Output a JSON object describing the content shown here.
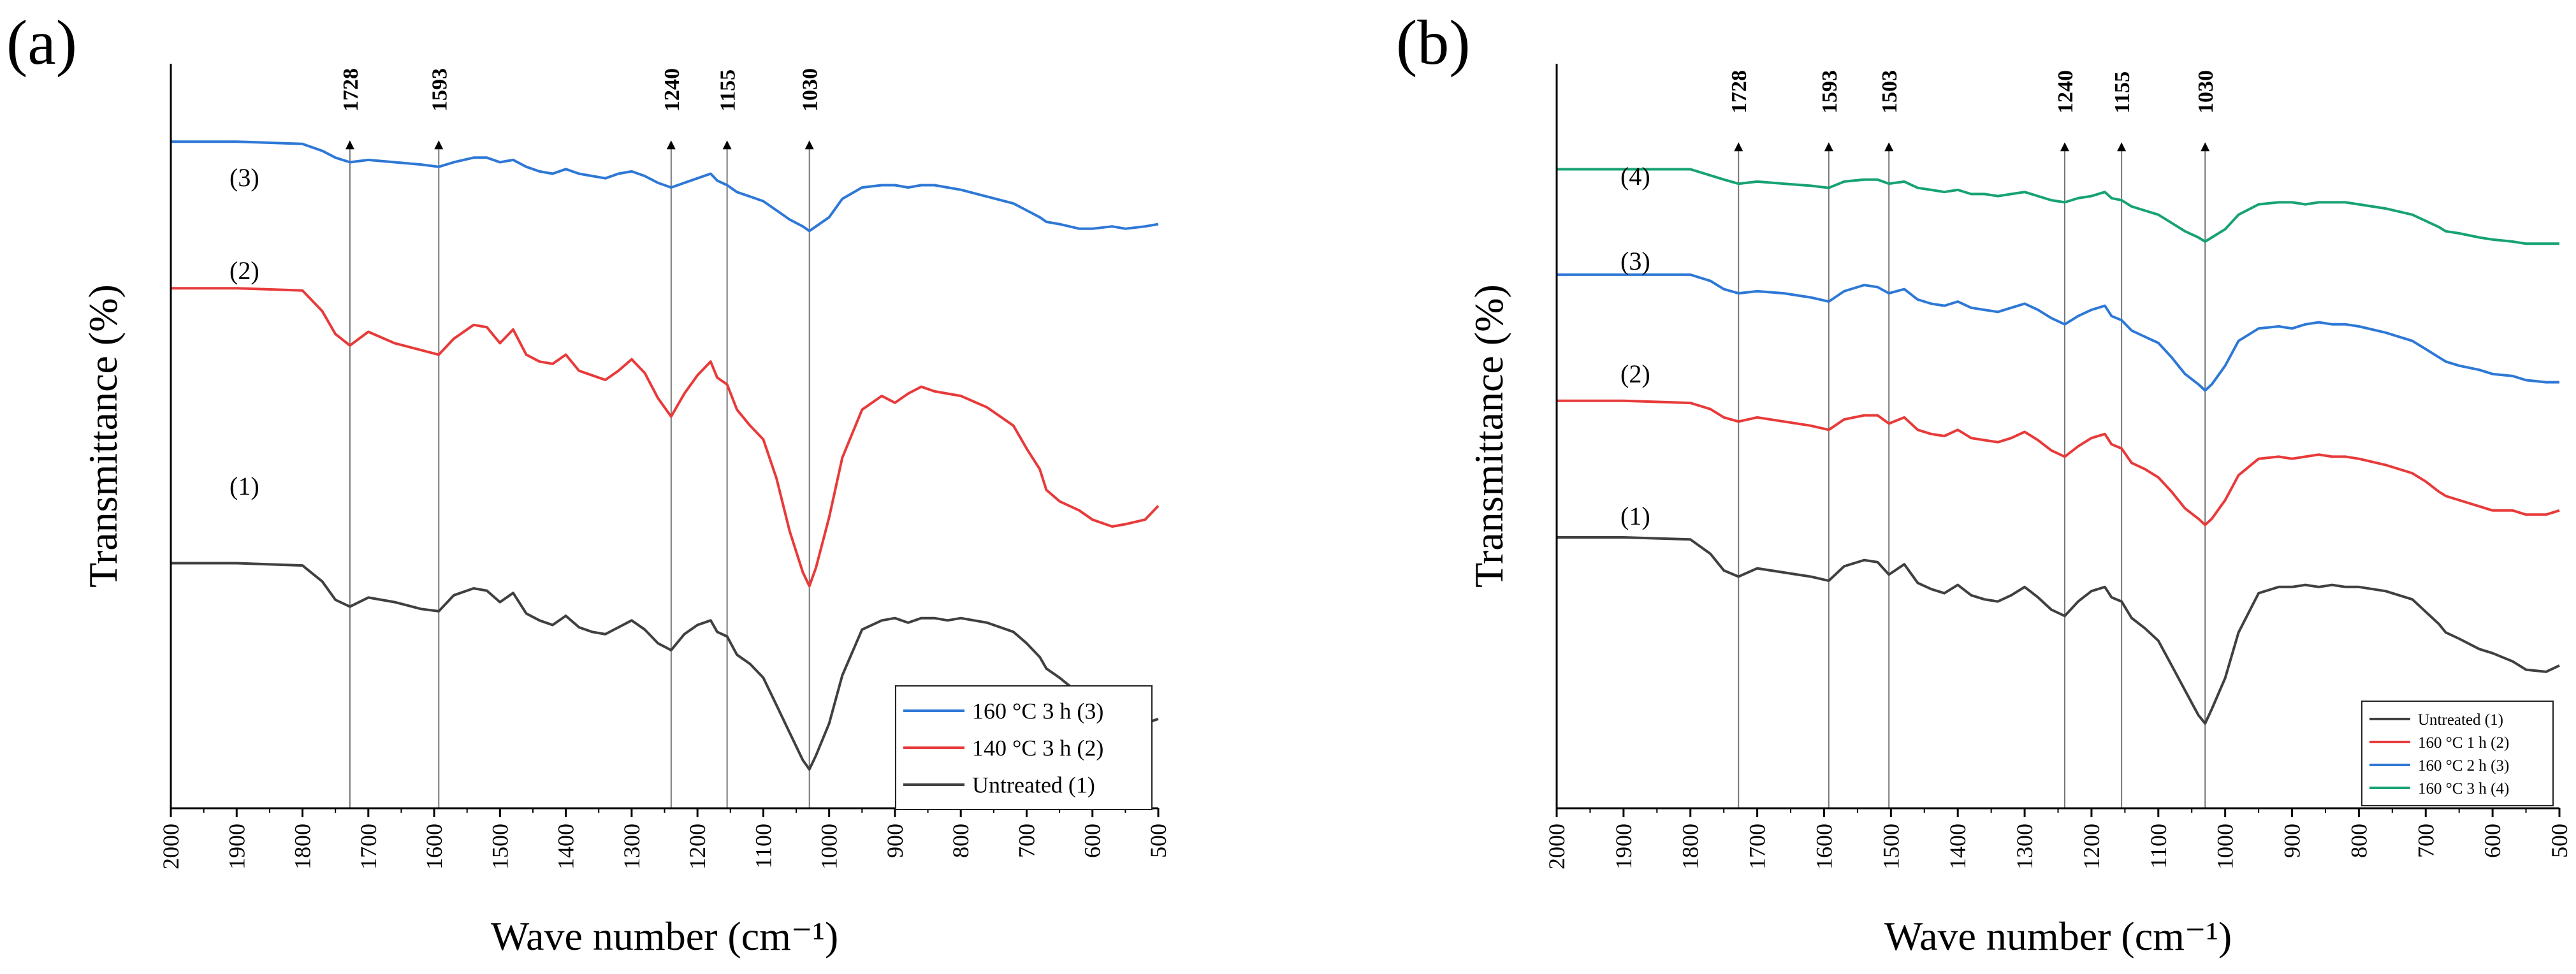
{
  "chart_data": [
    {
      "panel_label": "(a)",
      "type": "line",
      "xlabel": "Wave number (cm⁻¹)",
      "ylabel": "Transmittance (%)",
      "xlim": [
        2000,
        500
      ],
      "x_reversed": true,
      "xticks": [
        2000,
        1900,
        1800,
        1700,
        1600,
        1500,
        1400,
        1300,
        1200,
        1100,
        1000,
        900,
        800,
        700,
        600,
        500
      ],
      "xtick_labels": [
        "2000",
        "1900",
        "1800",
        "1700",
        "1600",
        "1500",
        "1400",
        "1300",
        "1200",
        "1100",
        "1000",
        "900",
        "800",
        "700",
        "600",
        "500"
      ],
      "y_ticks_shown": false,
      "grid": false,
      "legend_position": "bottom-right",
      "legend": [
        "160 °C 3 h (3)",
        "140 °C 3 h (2)",
        "Untreated (1)"
      ],
      "peak_markers": [
        {
          "x": 1728,
          "label": "1728"
        },
        {
          "x": 1593,
          "label": "1593"
        },
        {
          "x": 1240,
          "label": "1240"
        },
        {
          "x": 1155,
          "label": "1155"
        },
        {
          "x": 1030,
          "label": "1030"
        }
      ],
      "series": [
        {
          "legend_label": "Untreated (1)",
          "curve_label": "(1)",
          "color": "#404040",
          "x": [
            2000,
            1900,
            1800,
            1770,
            1750,
            1728,
            1700,
            1660,
            1620,
            1593,
            1570,
            1540,
            1520,
            1500,
            1480,
            1460,
            1440,
            1420,
            1400,
            1380,
            1360,
            1340,
            1320,
            1300,
            1280,
            1260,
            1240,
            1220,
            1200,
            1180,
            1170,
            1155,
            1140,
            1120,
            1100,
            1080,
            1060,
            1040,
            1030,
            1020,
            1000,
            980,
            950,
            920,
            900,
            880,
            860,
            840,
            820,
            800,
            760,
            720,
            700,
            680,
            670,
            650,
            620,
            600,
            570,
            550,
            520,
            500
          ],
          "y": [
            2.2,
            2.2,
            2.1,
            1.4,
            0.6,
            0.3,
            0.7,
            0.5,
            0.2,
            0.1,
            0.8,
            1.1,
            1.0,
            0.5,
            0.9,
            0.0,
            -0.3,
            -0.5,
            -0.1,
            -0.6,
            -0.8,
            -0.9,
            -0.6,
            -0.3,
            -0.7,
            -1.3,
            -1.6,
            -0.9,
            -0.5,
            -0.3,
            -0.8,
            -1.0,
            -1.8,
            -2.2,
            -2.8,
            -4.0,
            -5.2,
            -6.4,
            -6.8,
            -6.2,
            -4.8,
            -2.7,
            -0.7,
            -0.3,
            -0.2,
            -0.4,
            -0.2,
            -0.2,
            -0.3,
            -0.2,
            -0.4,
            -0.8,
            -1.3,
            -1.9,
            -2.4,
            -2.8,
            -3.5,
            -3.6,
            -4.1,
            -4.6,
            -4.8,
            -4.6
          ]
        },
        {
          "legend_label": "140 °C 3 h (2)",
          "curve_label": "(2)",
          "color": "#e83a3a",
          "x": [
            2000,
            1900,
            1800,
            1770,
            1750,
            1728,
            1700,
            1660,
            1620,
            1593,
            1570,
            1540,
            1520,
            1500,
            1480,
            1460,
            1440,
            1420,
            1400,
            1380,
            1360,
            1340,
            1320,
            1300,
            1280,
            1260,
            1240,
            1220,
            1200,
            1180,
            1170,
            1155,
            1140,
            1120,
            1100,
            1080,
            1060,
            1040,
            1030,
            1020,
            1000,
            980,
            950,
            920,
            900,
            880,
            860,
            840,
            820,
            800,
            760,
            720,
            700,
            680,
            670,
            650,
            620,
            600,
            570,
            550,
            520,
            500
          ],
          "y": [
            14.2,
            14.2,
            14.1,
            13.2,
            12.2,
            11.7,
            12.3,
            11.8,
            11.5,
            11.3,
            12.0,
            12.6,
            12.5,
            11.8,
            12.4,
            11.3,
            11.0,
            10.9,
            11.3,
            10.6,
            10.4,
            10.2,
            10.6,
            11.1,
            10.5,
            9.4,
            8.6,
            9.6,
            10.4,
            11.0,
            10.3,
            10.0,
            8.9,
            8.2,
            7.6,
            5.9,
            3.6,
            1.8,
            1.2,
            2.0,
            4.2,
            6.8,
            8.9,
            9.5,
            9.2,
            9.6,
            9.9,
            9.7,
            9.6,
            9.5,
            9.0,
            8.2,
            7.2,
            6.3,
            5.4,
            4.9,
            4.5,
            4.1,
            3.8,
            3.9,
            4.1,
            4.7
          ]
        },
        {
          "legend_label": "160 °C 3 h (3)",
          "curve_label": "(3)",
          "color": "#2e78d6",
          "x": [
            2000,
            1900,
            1800,
            1770,
            1750,
            1728,
            1700,
            1660,
            1620,
            1593,
            1570,
            1540,
            1520,
            1500,
            1480,
            1460,
            1440,
            1420,
            1400,
            1380,
            1360,
            1340,
            1320,
            1300,
            1280,
            1260,
            1240,
            1220,
            1200,
            1180,
            1170,
            1155,
            1140,
            1120,
            1100,
            1080,
            1060,
            1040,
            1030,
            1020,
            1000,
            980,
            950,
            920,
            900,
            880,
            860,
            840,
            820,
            800,
            760,
            720,
            700,
            680,
            670,
            650,
            620,
            600,
            570,
            550,
            520,
            500
          ],
          "y": [
            20.6,
            20.6,
            20.5,
            20.2,
            19.9,
            19.7,
            19.8,
            19.7,
            19.6,
            19.5,
            19.7,
            19.9,
            19.9,
            19.7,
            19.8,
            19.5,
            19.3,
            19.2,
            19.4,
            19.2,
            19.1,
            19.0,
            19.2,
            19.3,
            19.1,
            18.8,
            18.6,
            18.8,
            19.0,
            19.2,
            18.9,
            18.7,
            18.4,
            18.2,
            18.0,
            17.6,
            17.2,
            16.9,
            16.7,
            16.9,
            17.3,
            18.1,
            18.6,
            18.7,
            18.7,
            18.6,
            18.7,
            18.7,
            18.6,
            18.5,
            18.2,
            17.9,
            17.6,
            17.3,
            17.1,
            17.0,
            16.8,
            16.8,
            16.9,
            16.8,
            16.9,
            17.0
          ]
        }
      ]
    },
    {
      "panel_label": "(b)",
      "type": "line",
      "xlabel": "Wave number (cm⁻¹)",
      "ylabel": "Transmittance (%)",
      "xlim": [
        2000,
        500
      ],
      "x_reversed": true,
      "xticks": [
        2000,
        1900,
        1800,
        1700,
        1600,
        1500,
        1400,
        1300,
        1200,
        1100,
        1000,
        900,
        800,
        700,
        600,
        500
      ],
      "xtick_labels": [
        "2000",
        "1900",
        "1800",
        "1700",
        "1600",
        "1500",
        "1400",
        "1300",
        "1200",
        "1100",
        "1000",
        "900",
        "800",
        "700",
        "600",
        "500"
      ],
      "y_ticks_shown": false,
      "grid": false,
      "legend_position": "bottom-right",
      "legend": [
        "Untreated (1)",
        "160 °C 1 h (2)",
        "160 °C 2 h (3)",
        "160 °C 3 h (4)"
      ],
      "peak_markers": [
        {
          "x": 1728,
          "label": "1728"
        },
        {
          "x": 1593,
          "label": "1593"
        },
        {
          "x": 1503,
          "label": "1503"
        },
        {
          "x": 1240,
          "label": "1240"
        },
        {
          "x": 1155,
          "label": "1155"
        },
        {
          "x": 1030,
          "label": "1030"
        }
      ],
      "series": [
        {
          "legend_label": "Untreated (1)",
          "curve_label": "(1)",
          "color": "#404040",
          "x": [
            2000,
            1900,
            1800,
            1770,
            1750,
            1728,
            1700,
            1660,
            1620,
            1593,
            1570,
            1540,
            1520,
            1503,
            1480,
            1460,
            1440,
            1420,
            1400,
            1380,
            1360,
            1340,
            1320,
            1300,
            1280,
            1260,
            1240,
            1220,
            1200,
            1180,
            1170,
            1155,
            1140,
            1120,
            1100,
            1080,
            1060,
            1040,
            1030,
            1020,
            1000,
            980,
            950,
            920,
            900,
            880,
            860,
            840,
            820,
            800,
            760,
            720,
            700,
            680,
            670,
            650,
            620,
            600,
            570,
            550,
            520,
            500
          ],
          "y": [
            2.1,
            2.1,
            2.0,
            1.3,
            0.5,
            0.2,
            0.6,
            0.4,
            0.2,
            0.0,
            0.7,
            1.0,
            0.9,
            0.3,
            0.8,
            -0.1,
            -0.4,
            -0.6,
            -0.2,
            -0.7,
            -0.9,
            -1.0,
            -0.7,
            -0.3,
            -0.8,
            -1.4,
            -1.7,
            -1.0,
            -0.5,
            -0.3,
            -0.8,
            -1.0,
            -1.8,
            -2.3,
            -2.9,
            -4.1,
            -5.3,
            -6.5,
            -6.9,
            -6.2,
            -4.7,
            -2.5,
            -0.6,
            -0.3,
            -0.3,
            -0.2,
            -0.3,
            -0.2,
            -0.3,
            -0.3,
            -0.5,
            -0.9,
            -1.5,
            -2.1,
            -2.5,
            -2.8,
            -3.3,
            -3.5,
            -3.9,
            -4.3,
            -4.4,
            -4.1
          ]
        },
        {
          "legend_label": "160 °C 1 h (2)",
          "curve_label": "(2)",
          "color": "#e83a3a",
          "x": [
            2000,
            1900,
            1800,
            1770,
            1750,
            1728,
            1700,
            1660,
            1620,
            1593,
            1570,
            1540,
            1520,
            1503,
            1480,
            1460,
            1440,
            1420,
            1400,
            1380,
            1360,
            1340,
            1320,
            1300,
            1280,
            1260,
            1240,
            1220,
            1200,
            1180,
            1170,
            1155,
            1140,
            1120,
            1100,
            1080,
            1060,
            1040,
            1030,
            1020,
            1000,
            980,
            950,
            920,
            900,
            880,
            860,
            840,
            820,
            800,
            760,
            720,
            700,
            680,
            670,
            650,
            620,
            600,
            570,
            550,
            520,
            500
          ],
          "y": [
            8.7,
            8.7,
            8.6,
            8.3,
            7.9,
            7.7,
            7.9,
            7.7,
            7.5,
            7.3,
            7.8,
            8.0,
            8.0,
            7.6,
            7.9,
            7.3,
            7.1,
            7.0,
            7.3,
            6.9,
            6.8,
            6.7,
            6.9,
            7.2,
            6.8,
            6.3,
            6.0,
            6.5,
            6.9,
            7.1,
            6.6,
            6.4,
            5.7,
            5.4,
            5.0,
            4.3,
            3.5,
            3.0,
            2.7,
            3.0,
            3.9,
            5.1,
            5.9,
            6.0,
            5.9,
            6.0,
            6.1,
            6.0,
            6.0,
            5.9,
            5.6,
            5.2,
            4.8,
            4.3,
            4.1,
            3.9,
            3.6,
            3.4,
            3.4,
            3.2,
            3.2,
            3.4
          ]
        },
        {
          "legend_label": "160 °C 2 h (3)",
          "curve_label": "(3)",
          "color": "#2e78d6",
          "x": [
            2000,
            1900,
            1800,
            1770,
            1750,
            1728,
            1700,
            1660,
            1620,
            1593,
            1570,
            1540,
            1520,
            1503,
            1480,
            1460,
            1440,
            1420,
            1400,
            1380,
            1360,
            1340,
            1320,
            1300,
            1280,
            1260,
            1240,
            1220,
            1200,
            1180,
            1170,
            1155,
            1140,
            1120,
            1100,
            1080,
            1060,
            1040,
            1030,
            1020,
            1000,
            980,
            950,
            920,
            900,
            880,
            860,
            840,
            820,
            800,
            760,
            720,
            700,
            680,
            670,
            650,
            620,
            600,
            570,
            550,
            520,
            500
          ],
          "y": [
            14.8,
            14.8,
            14.8,
            14.5,
            14.1,
            13.9,
            14.0,
            13.9,
            13.7,
            13.5,
            14.0,
            14.3,
            14.2,
            13.9,
            14.1,
            13.6,
            13.4,
            13.3,
            13.5,
            13.2,
            13.1,
            13.0,
            13.2,
            13.4,
            13.1,
            12.7,
            12.4,
            12.8,
            13.1,
            13.3,
            12.8,
            12.6,
            12.1,
            11.8,
            11.5,
            10.8,
            10.0,
            9.5,
            9.2,
            9.5,
            10.4,
            11.6,
            12.2,
            12.3,
            12.2,
            12.4,
            12.5,
            12.4,
            12.4,
            12.3,
            12.0,
            11.6,
            11.2,
            10.8,
            10.6,
            10.4,
            10.2,
            10.0,
            9.9,
            9.7,
            9.6,
            9.6
          ]
        },
        {
          "legend_label": "160 °C 3 h (4)",
          "curve_label": "(4)",
          "color": "#17a274",
          "x": [
            2000,
            1900,
            1800,
            1770,
            1750,
            1728,
            1700,
            1660,
            1620,
            1593,
            1570,
            1540,
            1520,
            1503,
            1480,
            1460,
            1440,
            1420,
            1400,
            1380,
            1360,
            1340,
            1320,
            1300,
            1280,
            1260,
            1240,
            1220,
            1200,
            1180,
            1170,
            1155,
            1140,
            1120,
            1100,
            1080,
            1060,
            1040,
            1030,
            1020,
            1000,
            980,
            950,
            920,
            900,
            880,
            860,
            840,
            820,
            800,
            760,
            720,
            700,
            680,
            670,
            650,
            620,
            600,
            570,
            550,
            520,
            500
          ],
          "y": [
            19.9,
            19.9,
            19.9,
            19.6,
            19.4,
            19.2,
            19.3,
            19.2,
            19.1,
            19.0,
            19.3,
            19.4,
            19.4,
            19.2,
            19.3,
            19.0,
            18.9,
            18.8,
            18.9,
            18.7,
            18.7,
            18.6,
            18.7,
            18.8,
            18.6,
            18.4,
            18.3,
            18.5,
            18.6,
            18.8,
            18.5,
            18.4,
            18.1,
            17.9,
            17.7,
            17.3,
            16.9,
            16.6,
            16.4,
            16.6,
            17.0,
            17.7,
            18.2,
            18.3,
            18.3,
            18.2,
            18.3,
            18.3,
            18.3,
            18.2,
            18.0,
            17.7,
            17.4,
            17.1,
            16.9,
            16.8,
            16.6,
            16.5,
            16.4,
            16.3,
            16.3,
            16.3
          ]
        }
      ]
    }
  ]
}
